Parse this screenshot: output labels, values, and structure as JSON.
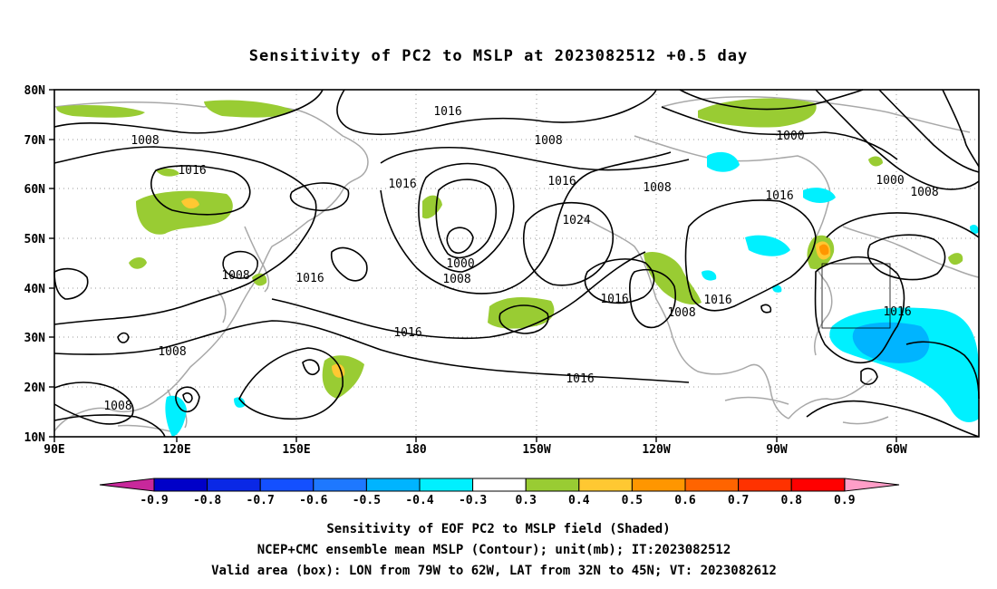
{
  "title": "Sensitivity of PC2 to MSLP at 2023082512 +0.5 day",
  "lat_ticks": [
    "80N",
    "70N",
    "60N",
    "50N",
    "40N",
    "30N",
    "20N",
    "10N"
  ],
  "lon_ticks": [
    "90E",
    "120E",
    "150E",
    "180",
    "150W",
    "120W",
    "90W",
    "60W"
  ],
  "contour_labels": [
    "1016",
    "1008",
    "1016",
    "1008",
    "1000",
    "1000",
    "1008",
    "1016",
    "1016",
    "1016",
    "1024",
    "1008",
    "1016",
    "1016",
    "1008",
    "1000",
    "1008",
    "1016",
    "1008",
    "1016",
    "1008",
    "1016",
    "1016",
    "1008"
  ],
  "colorbar": {
    "labels": [
      "-0.9",
      "-0.8",
      "-0.7",
      "-0.6",
      "-0.5",
      "-0.4",
      "-0.3",
      "0.3",
      "0.4",
      "0.5",
      "0.6",
      "0.7",
      "0.8",
      "0.9"
    ],
    "colors": [
      "#0000c8",
      "#0a28e6",
      "#1450ff",
      "#1e78ff",
      "#00b4ff",
      "#00f0ff",
      "#ffffff",
      "#99cc33",
      "#ffc832",
      "#ff9600",
      "#ff6400",
      "#ff3200",
      "#ff0000"
    ],
    "low_end_color": "#c8289b",
    "high_end_color": "#ff9ec8"
  },
  "footer": {
    "line1": "Sensitivity of EOF PC2 to MSLP field (Shaded)",
    "line2": "NCEP+CMC ensemble mean MSLP (Contour); unit(mb); IT:2023082512",
    "line3": "Valid area (box): LON from 79W to 62W, LAT from 32N to 45N; VT: 2023082612"
  }
}
